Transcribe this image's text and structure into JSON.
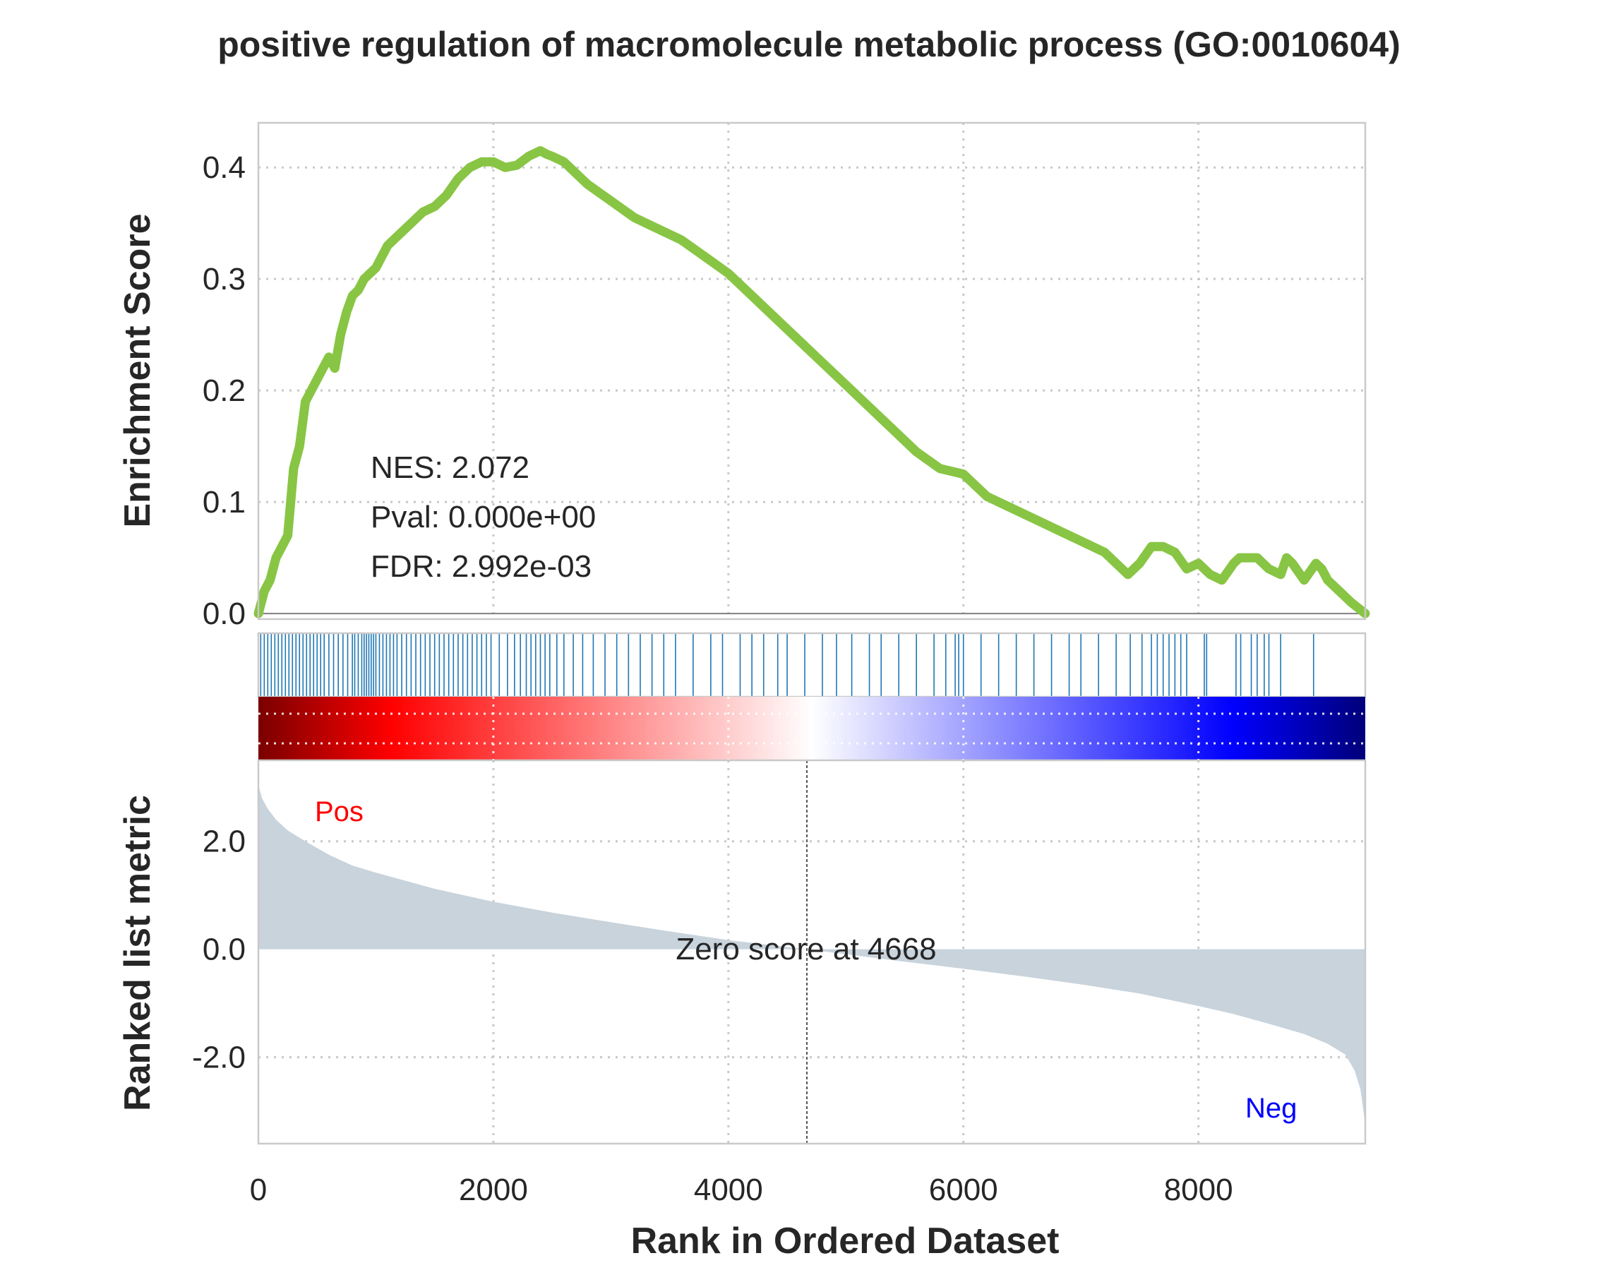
{
  "title": "positive regulation of macromolecule metabolic process (GO:0010604)",
  "colors": {
    "es_line": "#88c544",
    "hit_line": "#1f77b4",
    "metric_fill": "#c8d3dc",
    "pos_label": "#ff0000",
    "neg_label": "#0000ff",
    "heat_stops": [
      "#7a0000",
      "#ff0000",
      "#ffffff",
      "#0000ff",
      "#00007a"
    ]
  },
  "stats": {
    "nes": "NES: 2.072",
    "pval": "Pval: 0.000e+00",
    "fdr": "FDR: 2.992e-03"
  },
  "labels": {
    "pos": "Pos",
    "neg": "Neg",
    "zero_score": "Zero score at 4668"
  },
  "chart_data": {
    "type": "line",
    "xlabel": "Rank in Ordered Dataset",
    "xlim": [
      0,
      9420
    ],
    "xticks": [
      0,
      2000,
      4000,
      6000,
      8000
    ],
    "xtick_labels": [
      "0",
      "2000",
      "4000",
      "6000",
      "8000"
    ],
    "enrichment": {
      "ylabel": "Enrichment Score",
      "ylim": [
        -0.005,
        0.44
      ],
      "yticks": [
        0.0,
        0.1,
        0.2,
        0.3,
        0.4
      ],
      "ytick_labels": [
        "0.0",
        "0.1",
        "0.2",
        "0.3",
        "0.4"
      ],
      "x": [
        0,
        50,
        100,
        150,
        200,
        250,
        300,
        350,
        400,
        450,
        500,
        550,
        600,
        650,
        700,
        750,
        800,
        850,
        900,
        950,
        1000,
        1100,
        1200,
        1300,
        1400,
        1500,
        1600,
        1700,
        1800,
        1900,
        2000,
        2100,
        2200,
        2300,
        2400,
        2450,
        2500,
        2600,
        2700,
        2800,
        3000,
        3200,
        3400,
        3600,
        3800,
        4000,
        4200,
        4400,
        4600,
        4800,
        5000,
        5200,
        5400,
        5600,
        5800,
        6000,
        6200,
        6400,
        6600,
        6800,
        7000,
        7200,
        7400,
        7500,
        7600,
        7700,
        7800,
        7900,
        8000,
        8100,
        8200,
        8300,
        8350,
        8400,
        8500,
        8600,
        8700,
        8750,
        8800,
        8900,
        9000,
        9050,
        9100,
        9200,
        9300,
        9420
      ],
      "y": [
        0.0,
        0.02,
        0.03,
        0.05,
        0.06,
        0.07,
        0.13,
        0.15,
        0.19,
        0.2,
        0.21,
        0.22,
        0.23,
        0.22,
        0.25,
        0.27,
        0.285,
        0.29,
        0.3,
        0.305,
        0.31,
        0.33,
        0.34,
        0.35,
        0.36,
        0.365,
        0.375,
        0.39,
        0.4,
        0.405,
        0.405,
        0.4,
        0.402,
        0.41,
        0.415,
        0.412,
        0.41,
        0.405,
        0.395,
        0.385,
        0.37,
        0.355,
        0.345,
        0.335,
        0.32,
        0.305,
        0.285,
        0.265,
        0.245,
        0.225,
        0.205,
        0.185,
        0.165,
        0.145,
        0.13,
        0.125,
        0.105,
        0.095,
        0.085,
        0.075,
        0.065,
        0.055,
        0.035,
        0.045,
        0.06,
        0.06,
        0.055,
        0.04,
        0.045,
        0.035,
        0.03,
        0.045,
        0.05,
        0.05,
        0.05,
        0.04,
        0.035,
        0.05,
        0.045,
        0.03,
        0.045,
        0.04,
        0.03,
        0.02,
        0.01,
        0.0
      ]
    },
    "hits": [
      20,
      50,
      80,
      110,
      140,
      170,
      200,
      230,
      260,
      290,
      320,
      350,
      380,
      410,
      440,
      470,
      500,
      530,
      560,
      600,
      640,
      680,
      720,
      760,
      800,
      820,
      850,
      880,
      900,
      920,
      940,
      960,
      980,
      1000,
      1030,
      1060,
      1090,
      1120,
      1150,
      1180,
      1220,
      1260,
      1300,
      1340,
      1380,
      1420,
      1460,
      1500,
      1540,
      1580,
      1620,
      1660,
      1700,
      1740,
      1780,
      1820,
      1860,
      1900,
      1940,
      1980,
      2050,
      2120,
      2180,
      2230,
      2280,
      2320,
      2360,
      2400,
      2440,
      2480,
      2540,
      2600,
      2680,
      2760,
      2850,
      2950,
      3050,
      3150,
      3250,
      3350,
      3450,
      3550,
      3700,
      3850,
      3950,
      4100,
      4200,
      4300,
      4420,
      4500,
      4650,
      4800,
      4920,
      5050,
      5200,
      5300,
      5450,
      5600,
      5750,
      5850,
      5930,
      5960,
      6000,
      6150,
      6300,
      6450,
      6600,
      6750,
      6900,
      7000,
      7150,
      7300,
      7420,
      7520,
      7600,
      7650,
      7700,
      7750,
      7800,
      7850,
      7900,
      8050,
      8070,
      8320,
      8360,
      8450,
      8500,
      8560,
      8600,
      8700,
      8980
    ],
    "metric": {
      "ylabel": "Ranked list metric",
      "ylim": [
        -3.6,
        3.5
      ],
      "yticks": [
        2.0,
        0.0,
        -2.0
      ],
      "ytick_labels": [
        "2.0",
        "0.0",
        "-2.0"
      ],
      "zero_cross": 4668,
      "x": [
        0,
        30,
        80,
        150,
        250,
        400,
        600,
        800,
        1000,
        1500,
        2000,
        2500,
        3000,
        3500,
        4000,
        4668,
        5000,
        5500,
        6000,
        6500,
        7000,
        7500,
        8000,
        8300,
        8600,
        8900,
        9100,
        9250,
        9330,
        9380,
        9420
      ],
      "y": [
        3.05,
        2.8,
        2.6,
        2.4,
        2.2,
        2.0,
        1.75,
        1.55,
        1.42,
        1.12,
        0.88,
        0.68,
        0.5,
        0.33,
        0.17,
        0.0,
        -0.09,
        -0.23,
        -0.36,
        -0.5,
        -0.65,
        -0.82,
        -1.05,
        -1.2,
        -1.38,
        -1.57,
        -1.75,
        -1.95,
        -2.25,
        -2.6,
        -3.25
      ]
    }
  }
}
